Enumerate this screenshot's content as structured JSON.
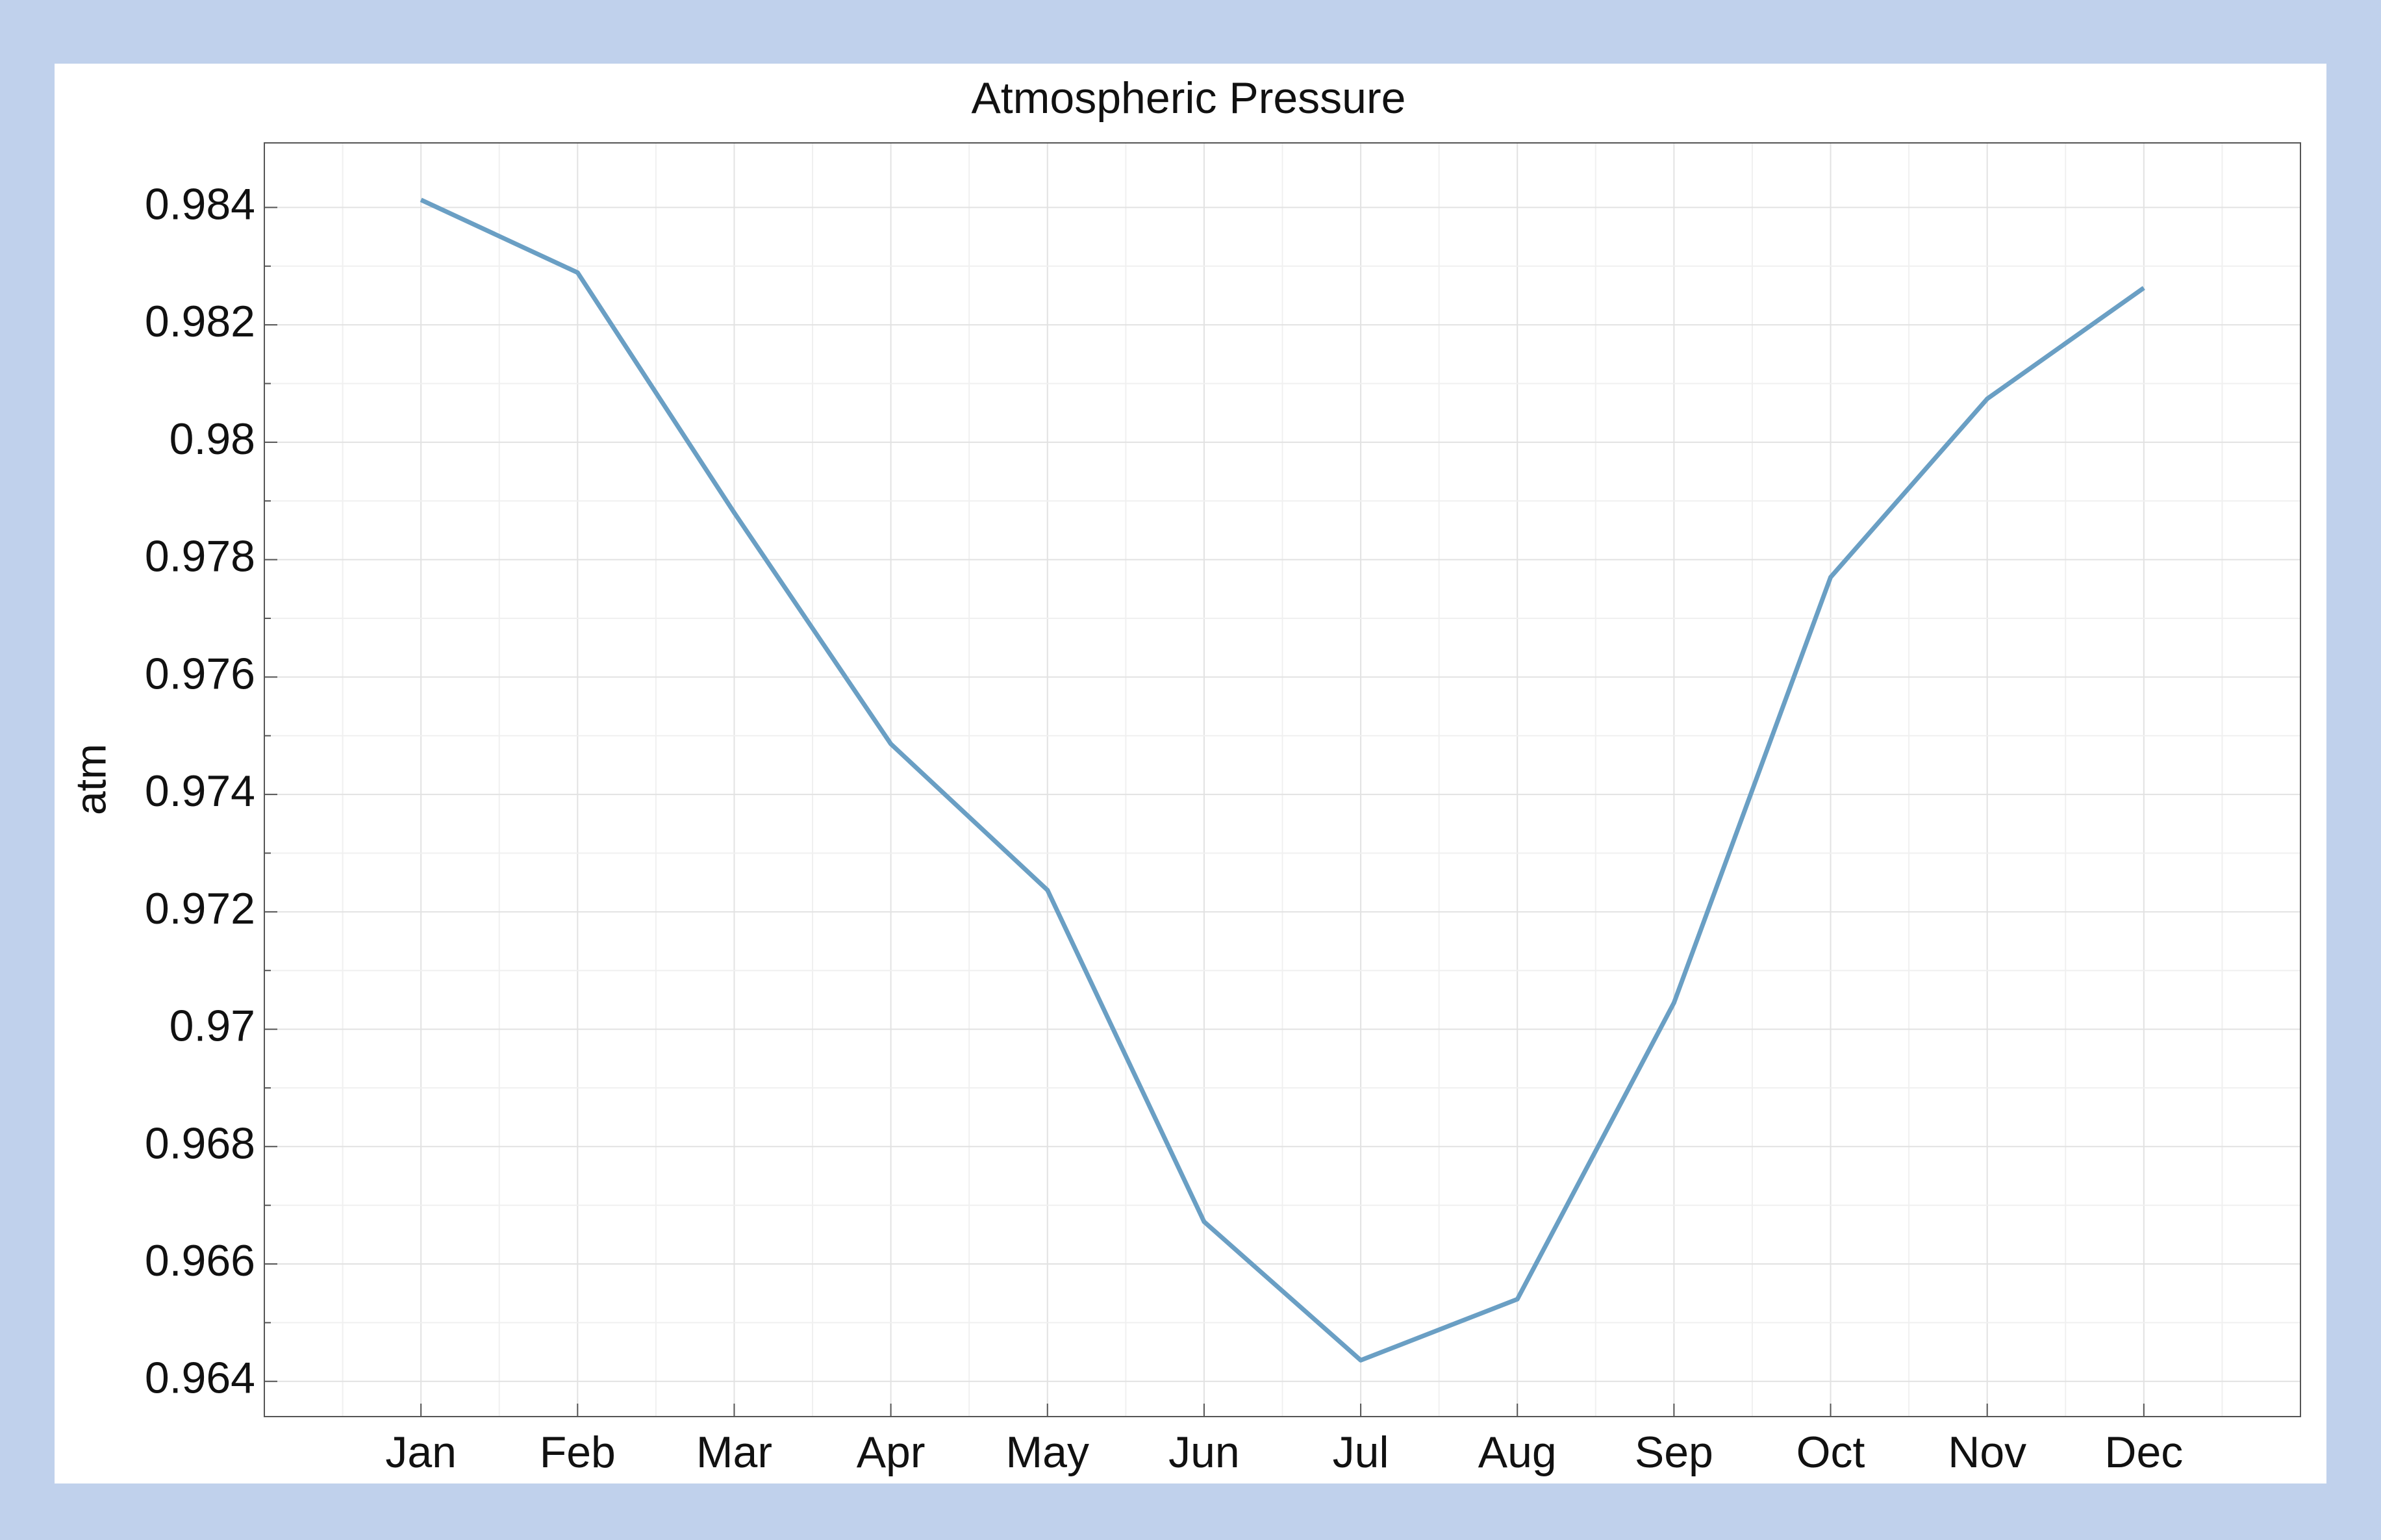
{
  "chart_data": {
    "type": "line",
    "title": "Atmospheric Pressure",
    "y_label": "atm",
    "categories": [
      "Jan",
      "Feb",
      "Mar",
      "Apr",
      "May",
      "Jun",
      "Jul",
      "Aug",
      "Sep",
      "Oct",
      "Nov",
      "Dec"
    ],
    "series": [
      {
        "name": "atm",
        "color": "#6a9fc4",
        "values": [
          0.98413,
          0.98289,
          0.9788,
          0.97486,
          0.97237,
          0.96672,
          0.96436,
          0.9654,
          0.97045,
          0.9777,
          0.98074,
          0.98263
        ]
      }
    ],
    "ylim": [
      0.9634,
      0.9851
    ],
    "yticks": [
      0.964,
      0.966,
      0.968,
      0.97,
      0.972,
      0.974,
      0.976,
      0.978,
      0.98,
      0.982,
      0.984
    ],
    "grid": true
  }
}
